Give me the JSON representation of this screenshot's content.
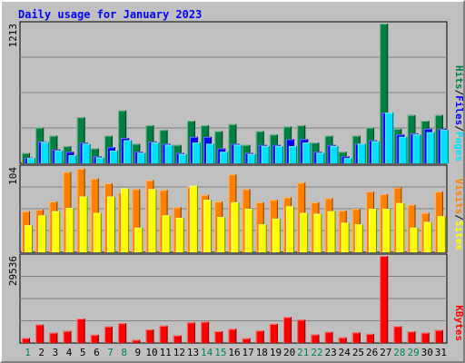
{
  "page": {
    "title": "Daily usage for January 2023"
  },
  "chart_data": [
    {
      "type": "bar",
      "panel": "hits-files-pages",
      "y_max_label": "1213",
      "ylim": [
        0,
        1213
      ],
      "legend_labels": [
        "Pages",
        "Files",
        "Hits"
      ],
      "legend_separator": "/",
      "categories": [
        "1",
        "2",
        "3",
        "4",
        "5",
        "6",
        "7",
        "8",
        "9",
        "10",
        "11",
        "12",
        "13",
        "14",
        "15",
        "16",
        "17",
        "18",
        "19",
        "20",
        "21",
        "22",
        "23",
        "24",
        "25",
        "26",
        "27",
        "28",
        "29",
        "30",
        "31"
      ],
      "series": [
        {
          "name": "Hits",
          "color": "#008040",
          "values": [
            90,
            310,
            240,
            150,
            400,
            130,
            240,
            460,
            170,
            330,
            290,
            160,
            370,
            330,
            280,
            340,
            160,
            280,
            250,
            320,
            330,
            180,
            240,
            100,
            240,
            310,
            1213,
            300,
            420,
            370,
            420
          ]
        },
        {
          "name": "Files",
          "color": "#0000ff",
          "values": [
            50,
            190,
            120,
            100,
            180,
            60,
            140,
            220,
            100,
            190,
            170,
            90,
            230,
            230,
            130,
            170,
            90,
            160,
            160,
            210,
            210,
            100,
            160,
            60,
            170,
            200,
            440,
            250,
            260,
            300,
            300
          ]
        },
        {
          "name": "Pages",
          "color": "#00e0ff",
          "values": [
            45,
            185,
            110,
            70,
            170,
            50,
            110,
            200,
            90,
            180,
            160,
            80,
            180,
            170,
            100,
            160,
            80,
            150,
            150,
            150,
            180,
            90,
            150,
            45,
            170,
            190,
            440,
            230,
            250,
            270,
            290
          ]
        }
      ],
      "grid": true
    },
    {
      "type": "bar",
      "panel": "visits-sites",
      "y_max_label": "104",
      "ylim": [
        0,
        104
      ],
      "legend_labels": [
        "Sites",
        "Visits"
      ],
      "legend_separator": "/",
      "categories": [
        "1",
        "2",
        "3",
        "4",
        "5",
        "6",
        "7",
        "8",
        "9",
        "10",
        "11",
        "12",
        "13",
        "14",
        "15",
        "16",
        "17",
        "18",
        "19",
        "20",
        "21",
        "22",
        "23",
        "24",
        "25",
        "26",
        "27",
        "28",
        "29",
        "30",
        "31"
      ],
      "series": [
        {
          "name": "Visits",
          "color": "#ff8000",
          "values": [
            50,
            52,
            62,
            98,
            102,
            90,
            84,
            73,
            77,
            88,
            76,
            55,
            80,
            70,
            62,
            95,
            77,
            61,
            64,
            67,
            85,
            61,
            66,
            51,
            53,
            74,
            71,
            79,
            58,
            48,
            74
          ]
        },
        {
          "name": "Sites",
          "color": "#ffff00",
          "values": [
            33,
            45,
            50,
            54,
            68,
            48,
            68,
            78,
            30,
            77,
            45,
            42,
            81,
            64,
            43,
            61,
            53,
            34,
            41,
            56,
            48,
            47,
            50,
            36,
            34,
            53,
            53,
            60,
            30,
            37,
            44
          ]
        }
      ],
      "grid": true
    },
    {
      "type": "bar",
      "panel": "kbytes",
      "y_max_label": "29536",
      "ylim": [
        0,
        29536
      ],
      "legend_labels": [
        "KBytes"
      ],
      "categories": [
        "1",
        "2",
        "3",
        "4",
        "5",
        "6",
        "7",
        "8",
        "9",
        "10",
        "11",
        "12",
        "13",
        "14",
        "15",
        "16",
        "17",
        "18",
        "19",
        "20",
        "21",
        "22",
        "23",
        "24",
        "25",
        "26",
        "27",
        "28",
        "29",
        "30",
        "31"
      ],
      "series": [
        {
          "name": "KBytes",
          "color": "#ff0000",
          "values": [
            1700,
            6300,
            3500,
            4100,
            8300,
            2800,
            5600,
            6700,
            1100,
            4600,
            5900,
            2600,
            7000,
            7200,
            4000,
            4800,
            1600,
            4200,
            6500,
            8800,
            7900,
            2900,
            3800,
            1900,
            3600,
            3100,
            29536,
            5700,
            3900,
            3500,
            4400
          ]
        }
      ],
      "grid": true
    }
  ],
  "x_axis": {
    "labels": [
      "1",
      "2",
      "3",
      "4",
      "5",
      "6",
      "7",
      "8",
      "9",
      "10",
      "11",
      "12",
      "13",
      "14",
      "15",
      "16",
      "17",
      "18",
      "19",
      "20",
      "21",
      "22",
      "23",
      "24",
      "25",
      "26",
      "27",
      "28",
      "29",
      "30",
      "31"
    ],
    "weekend_days": [
      1,
      7,
      8,
      14,
      15,
      21,
      22,
      28,
      29
    ],
    "weekday_color": "#000000",
    "weekend_color": "#00805c"
  },
  "colors": {
    "hits": "#008040",
    "files": "#0000ff",
    "pages": "#00e0ff",
    "visits": "#ff8000",
    "sites": "#ffff00",
    "kbytes": "#ff0000",
    "title": "#0000ff",
    "plot_bg": "#c0c0c0"
  }
}
